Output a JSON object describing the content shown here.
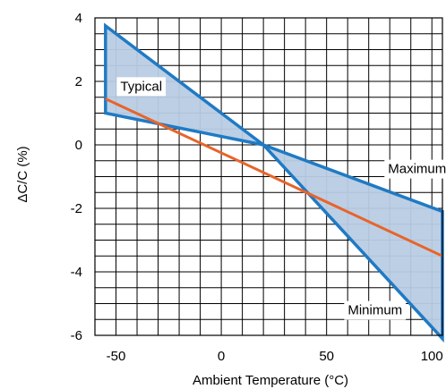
{
  "chart_data": {
    "type": "area",
    "title": "",
    "xlabel": "Ambient Temperature (°C)",
    "ylabel": "ΔC/C (%)",
    "xlim": [
      -60,
      105
    ],
    "ylim": [
      -6,
      4
    ],
    "x_ticks": [
      -50,
      0,
      50,
      100
    ],
    "y_ticks": [
      -6,
      -4,
      -2,
      0,
      2,
      4
    ],
    "grid": true,
    "legend": "none",
    "colors": {
      "band_fill": "#b8cce4",
      "band_edge": "#1f7ac4",
      "typical_line": "#e8642a",
      "grid": "#000000"
    },
    "envelope": [
      {
        "x": -55,
        "y": 3.75
      },
      {
        "x": 20,
        "y": 0
      },
      {
        "x": 105,
        "y": -2.1
      },
      {
        "x": 105,
        "y": -6.1
      },
      {
        "x": 20,
        "y": 0
      },
      {
        "x": -55,
        "y": 1.0
      }
    ],
    "series": [
      {
        "name": "Typical",
        "x": [
          -55,
          105
        ],
        "y": [
          1.45,
          -3.5
        ]
      }
    ],
    "annotations": [
      {
        "text": "Typical",
        "x": -38,
        "y": 1.85
      },
      {
        "text": "Maximum",
        "x": 93,
        "y": -0.75
      },
      {
        "text": "Minimum",
        "x": 73,
        "y": -5.2
      }
    ]
  }
}
